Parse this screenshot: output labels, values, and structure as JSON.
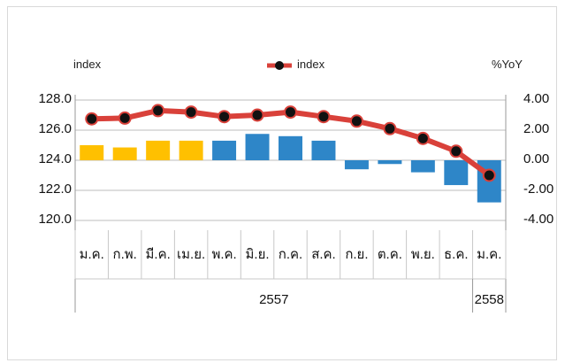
{
  "chart_data": {
    "type": "bar+line",
    "left_axis_title": "index",
    "right_axis_title": "%YoY",
    "legend": {
      "label": "index",
      "placement": "top-center"
    },
    "left_axis": {
      "min": 120,
      "max": 128,
      "ticks": [
        "120.0",
        "122.0",
        "124.0",
        "126.0",
        "128.0"
      ]
    },
    "right_axis": {
      "min": -4,
      "max": 4,
      "ticks": [
        "-4.00",
        "-2.00",
        "0.00",
        "2.00",
        "4.00"
      ]
    },
    "categories": [
      "ม.ค.",
      "ก.พ.",
      "มี.ค.",
      "เม.ย.",
      "พ.ค.",
      "มิ.ย.",
      "ก.ค.",
      "ส.ค.",
      "ก.ย.",
      "ต.ค.",
      "พ.ย.",
      "ธ.ค.",
      "ม.ค."
    ],
    "year_groups": [
      {
        "label": "2557",
        "count": 12
      },
      {
        "label": "2558",
        "count": 1
      }
    ],
    "series": [
      {
        "name": "",
        "type": "bar",
        "axis": "right",
        "values": [
          1.0,
          0.85,
          1.3,
          1.3,
          1.3,
          1.75,
          1.6,
          1.3,
          -0.6,
          -0.25,
          -0.8,
          -1.65,
          -2.8
        ],
        "colors": [
          "#FFC000",
          "#FFC000",
          "#FFC000",
          "#FFC000",
          "#2E86C8",
          "#2E86C8",
          "#2E86C8",
          "#2E86C8",
          "#2E86C8",
          "#2E86C8",
          "#2E86C8",
          "#2E86C8",
          "#2E86C8"
        ]
      },
      {
        "name": "index",
        "type": "line",
        "axis": "left",
        "values": [
          126.75,
          126.8,
          127.3,
          127.2,
          126.9,
          127.0,
          127.2,
          126.9,
          126.6,
          126.1,
          125.45,
          124.6,
          123.0
        ],
        "line_color": "#D9413A",
        "marker_color": "#111111"
      }
    ],
    "grid": true
  }
}
